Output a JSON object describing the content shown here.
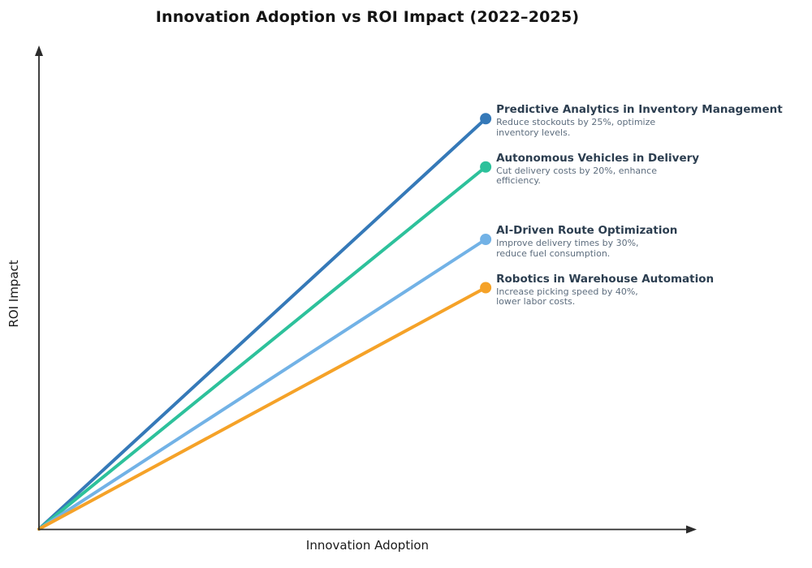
{
  "chart_data": {
    "type": "line",
    "title": "Innovation Adoption vs ROI Impact (2022–2025)",
    "xlabel": "Innovation Adoption",
    "ylabel": "ROI Impact",
    "xlim": [
      0,
      100
    ],
    "ylim": [
      0,
      100
    ],
    "grid": false,
    "ticks_shown": false,
    "legend_position": "inline-annotations-right",
    "axis_color": "#2b2b2b",
    "title_color": "#141414",
    "axis_label_color": "#1a1a1a",
    "label_title_color": "#2c3e50",
    "label_desc_color": "#5d6d7e",
    "series": [
      {
        "name": "Predictive Analytics in Inventory Management",
        "desc_lines": [
          "Reduce stockouts by 25%, optimize",
          "inventory levels."
        ],
        "color": "#3579b8",
        "x": [
          0,
          68
        ],
        "y": [
          0,
          85
        ]
      },
      {
        "name": "Autonomous Vehicles in Delivery",
        "desc_lines": [
          "Cut delivery costs by 20%, enhance",
          "efficiency."
        ],
        "color": "#2dc19b",
        "x": [
          0,
          68
        ],
        "y": [
          0,
          75
        ]
      },
      {
        "name": "AI-Driven Route Optimization",
        "desc_lines": [
          "Improve delivery times by 30%,",
          "reduce fuel consumption."
        ],
        "color": "#72b2e6",
        "x": [
          0,
          68
        ],
        "y": [
          0,
          60
        ]
      },
      {
        "name": "Robotics in Warehouse Automation",
        "desc_lines": [
          "Increase picking speed by 40%,",
          "lower labor costs."
        ],
        "color": "#f5a228",
        "x": [
          0,
          68
        ],
        "y": [
          0,
          50
        ]
      }
    ]
  }
}
